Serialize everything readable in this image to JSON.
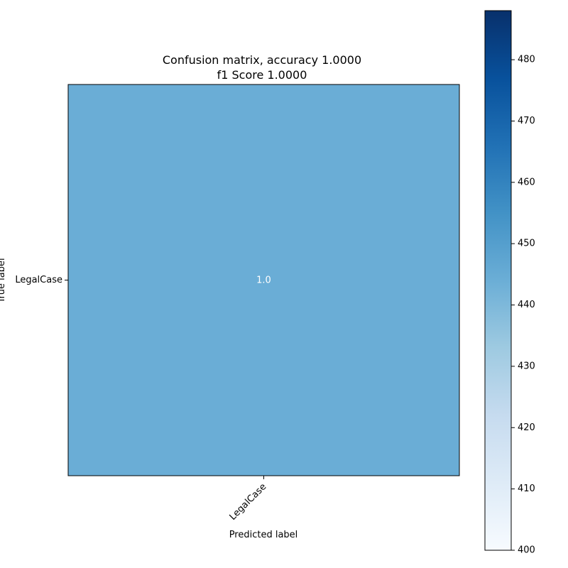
{
  "chart_data": {
    "type": "heatmap",
    "title": "Confusion matrix, accuracy 1.0000\nf1 Score 1.0000",
    "xlabel": "Predicted label",
    "ylabel": "True label",
    "x_categories": [
      "LegalCase"
    ],
    "y_categories": [
      "LegalCase"
    ],
    "matrix": [
      [
        444
      ]
    ],
    "cell_labels": [
      [
        "1.0"
      ]
    ],
    "colorbar": {
      "range": [
        400,
        488
      ],
      "ticks": [
        400,
        410,
        420,
        430,
        440,
        450,
        460,
        470,
        480
      ],
      "colormap": "Blues"
    },
    "colors": {
      "cell": "#6aadd6",
      "cell_text": "#ffffff",
      "colorbar_low": "#f7fbff",
      "colorbar_high": "#08306b"
    }
  }
}
